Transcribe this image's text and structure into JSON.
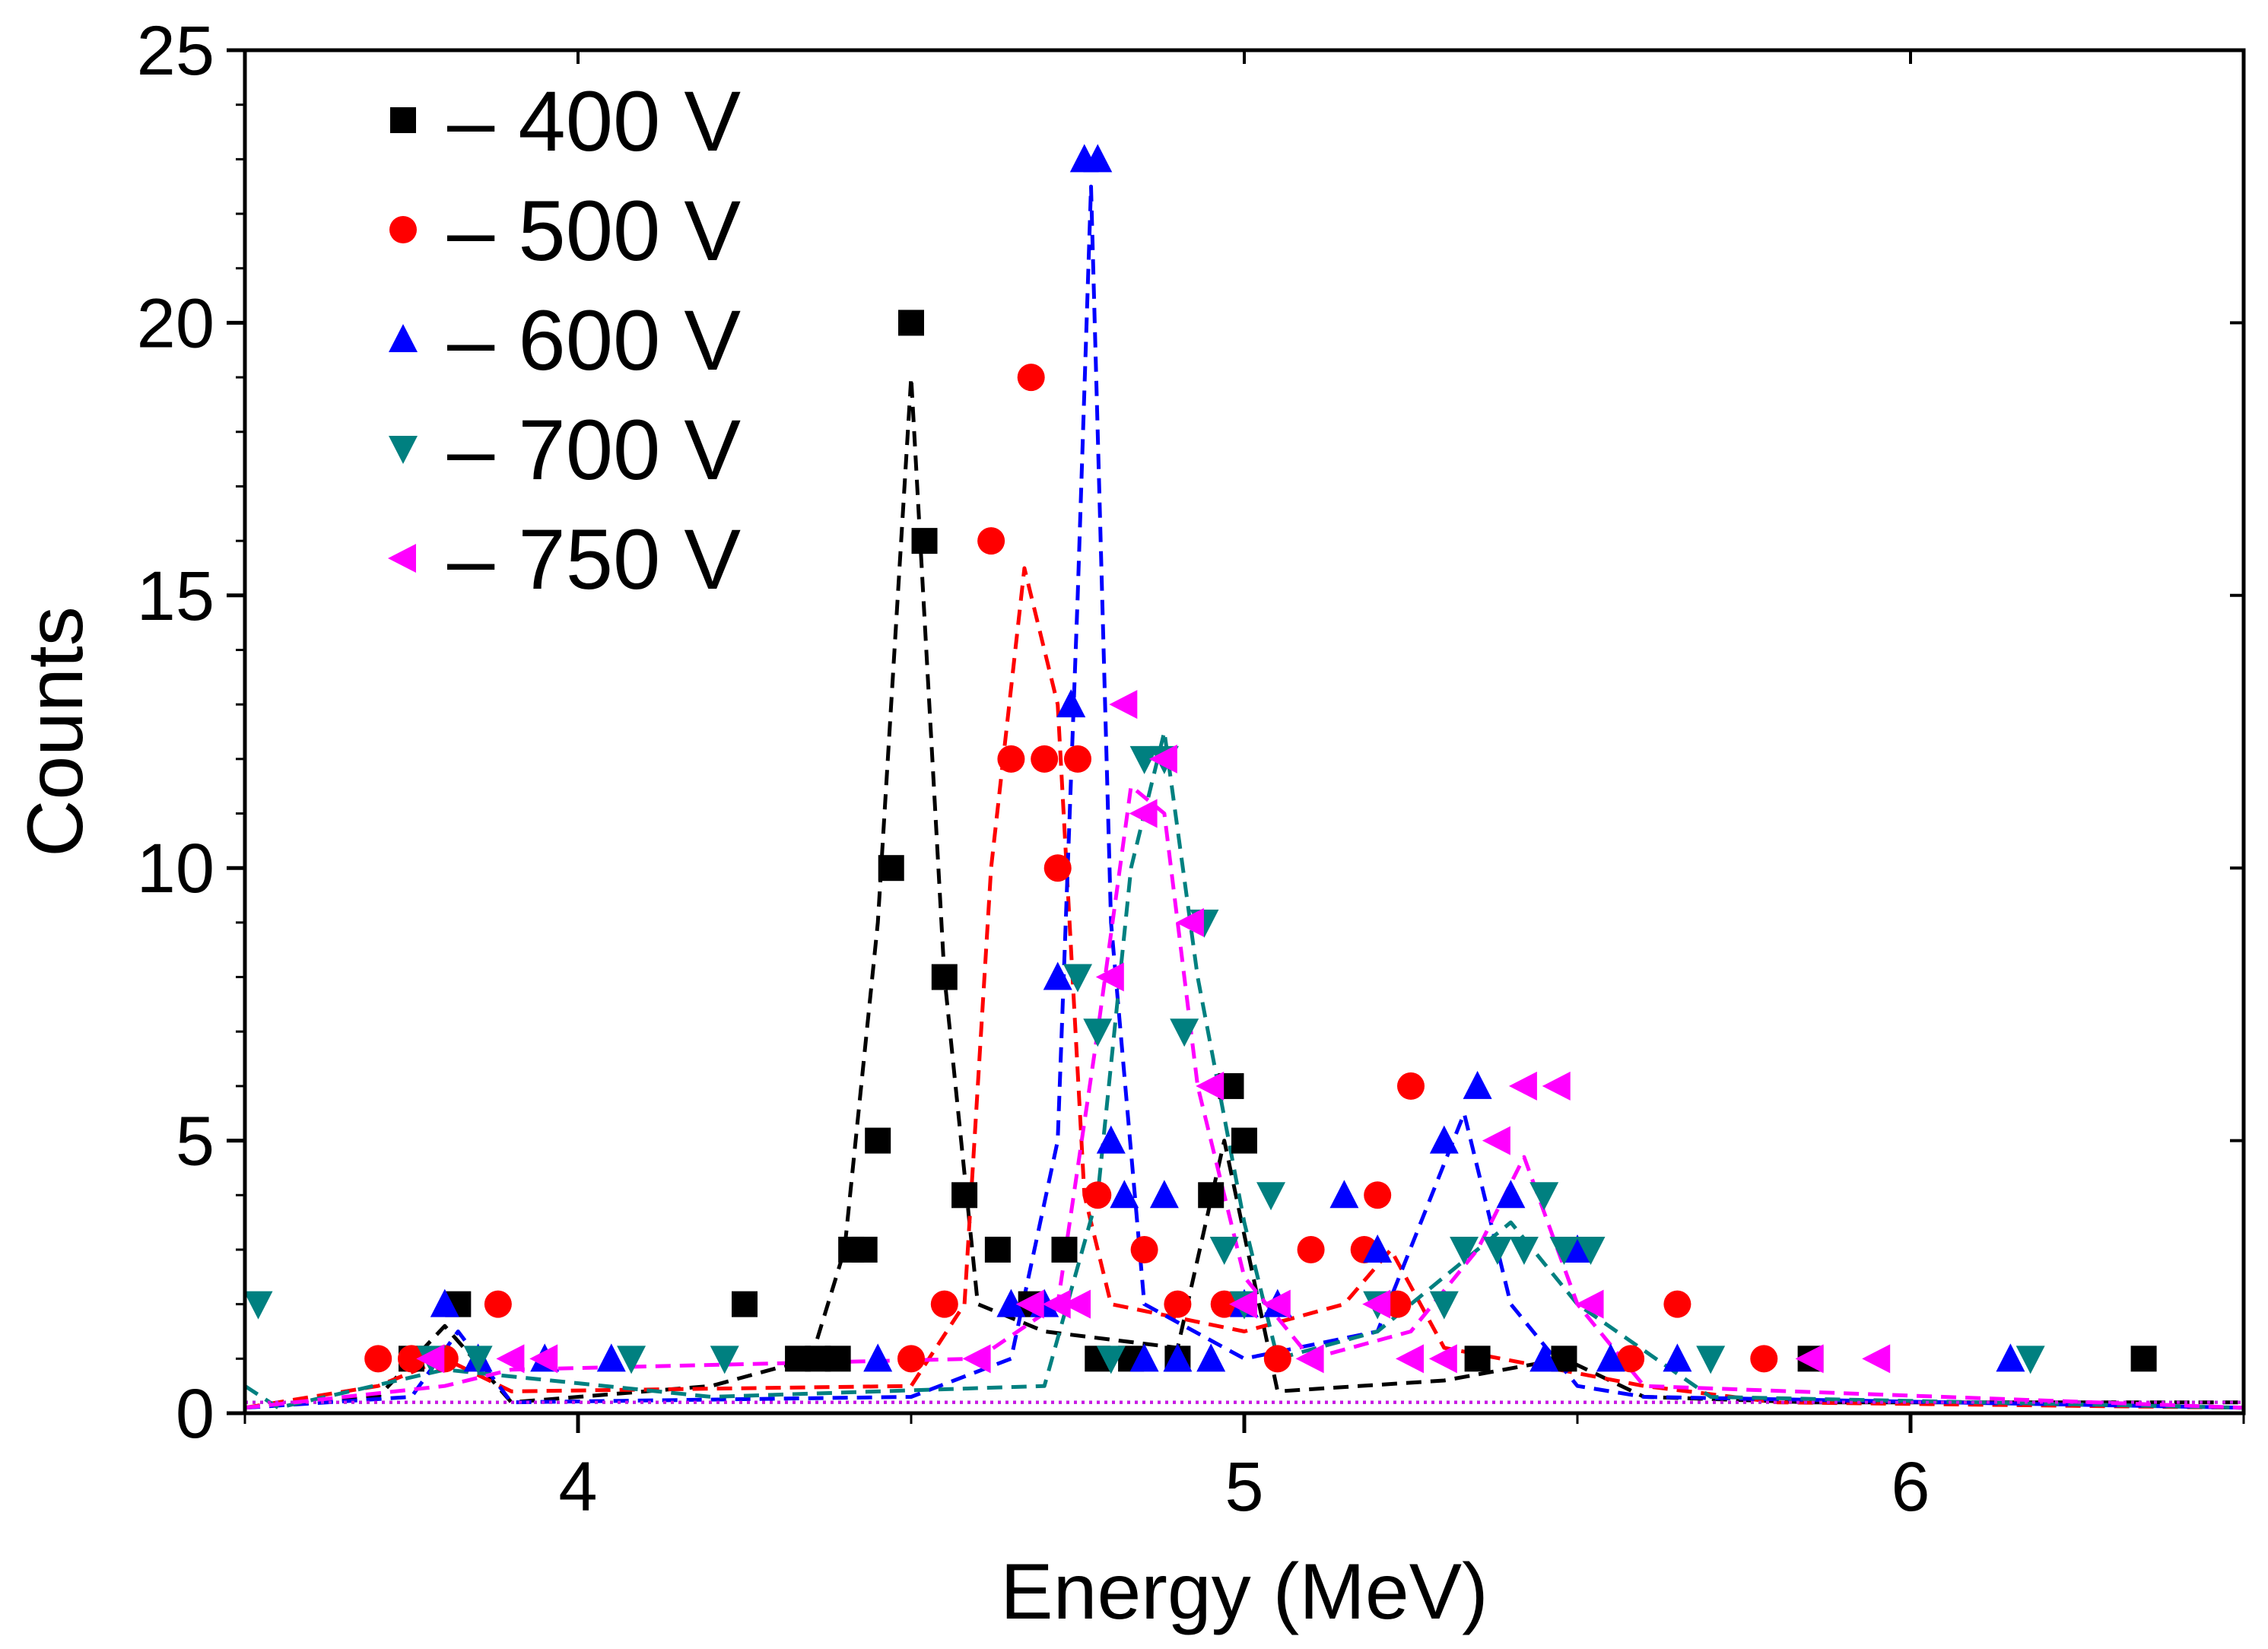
{
  "chart_data": {
    "type": "scatter",
    "title": "",
    "xlabel": "Energy (MeV)",
    "ylabel": "Counts",
    "xlim": [
      3.5,
      6.5
    ],
    "ylim": [
      0,
      25
    ],
    "xticks": [
      4,
      5,
      6
    ],
    "yticks": [
      0,
      5,
      10,
      15,
      20,
      25
    ],
    "grid": false,
    "legend_position": "top-left",
    "series": [
      {
        "name": "400 V",
        "legend_label": "– 400 V",
        "color": "#000000",
        "marker": "square",
        "x": [
          3.75,
          3.82,
          4.25,
          4.33,
          4.36,
          4.39,
          4.41,
          4.43,
          4.45,
          4.47,
          4.5,
          4.52,
          4.55,
          4.58,
          4.63,
          4.68,
          4.73,
          4.78,
          4.83,
          4.9,
          4.95,
          4.98,
          5.0,
          5.35,
          5.48,
          5.85,
          6.35
        ],
        "y": [
          1,
          2,
          2,
          1,
          1,
          1,
          3,
          3,
          5,
          10,
          20,
          16,
          8,
          4,
          3,
          2,
          3,
          1,
          1,
          1,
          4,
          6,
          5,
          1,
          1,
          1,
          1
        ],
        "fit_x": [
          3.5,
          3.7,
          3.8,
          3.9,
          4.2,
          4.35,
          4.4,
          4.45,
          4.5,
          4.55,
          4.6,
          4.7,
          4.9,
          4.97,
          5.05,
          5.3,
          5.48,
          5.6,
          5.85,
          6.5
        ],
        "fit_y": [
          0.1,
          0.3,
          1.6,
          0.2,
          0.5,
          1.0,
          3.0,
          9.0,
          19.0,
          8.0,
          2.0,
          1.5,
          1.2,
          5.0,
          0.4,
          0.6,
          1.0,
          0.3,
          0.2,
          0.2
        ]
      },
      {
        "name": "500 V",
        "legend_label": "– 500 V",
        "color": "#ff0000",
        "marker": "circle",
        "x": [
          3.7,
          3.75,
          3.8,
          3.88,
          4.5,
          4.55,
          4.62,
          4.65,
          4.68,
          4.7,
          4.72,
          4.75,
          4.78,
          4.85,
          4.9,
          4.97,
          5.05,
          5.1,
          5.18,
          5.2,
          5.23,
          5.25,
          5.58,
          5.65,
          5.78
        ],
        "y": [
          1,
          1,
          1,
          2,
          1,
          2,
          16,
          12,
          19,
          12,
          10,
          12,
          4,
          3,
          2,
          2,
          1,
          3,
          3,
          4,
          2,
          6,
          1,
          2,
          1
        ],
        "fit_x": [
          3.5,
          3.7,
          3.8,
          3.9,
          4.5,
          4.58,
          4.62,
          4.67,
          4.72,
          4.76,
          4.8,
          5.0,
          5.15,
          5.22,
          5.3,
          5.6,
          5.8,
          6.5
        ],
        "fit_y": [
          0.1,
          0.5,
          1.0,
          0.4,
          0.5,
          2.0,
          10.0,
          15.5,
          13.0,
          4.0,
          2.0,
          1.5,
          2.0,
          3.0,
          1.2,
          0.5,
          0.2,
          0.1
        ]
      },
      {
        "name": "600 V",
        "legend_label": "– 600 V",
        "color": "#0000ff",
        "marker": "triangle-up",
        "x": [
          3.8,
          3.85,
          3.95,
          4.05,
          4.45,
          4.65,
          4.7,
          4.72,
          4.74,
          4.76,
          4.78,
          4.8,
          4.82,
          4.85,
          4.88,
          4.9,
          4.95,
          5.0,
          5.05,
          5.15,
          5.2,
          5.3,
          5.35,
          5.4,
          5.45,
          5.5,
          5.55,
          5.65,
          6.15
        ],
        "y": [
          2,
          1,
          1,
          1,
          1,
          2,
          2,
          8,
          13,
          23,
          23,
          5,
          4,
          1,
          4,
          1,
          1,
          2,
          2,
          4,
          3,
          5,
          6,
          4,
          1,
          3,
          1,
          1,
          1
        ],
        "fit_x": [
          3.5,
          3.75,
          3.82,
          3.9,
          4.5,
          4.65,
          4.72,
          4.75,
          4.77,
          4.8,
          4.85,
          5.0,
          5.2,
          5.33,
          5.4,
          5.5,
          5.6,
          6.5
        ],
        "fit_y": [
          0.1,
          0.3,
          1.5,
          0.2,
          0.3,
          1.0,
          5.0,
          15.0,
          22.5,
          9.0,
          2.0,
          1.0,
          1.5,
          5.5,
          2.0,
          0.5,
          0.3,
          0.1
        ]
      },
      {
        "name": "700 V",
        "legend_label": "– 700 V",
        "color": "#008080",
        "marker": "triangle-down",
        "x": [
          3.52,
          3.78,
          3.85,
          4.08,
          4.22,
          4.75,
          4.78,
          4.8,
          4.85,
          4.88,
          4.91,
          4.94,
          4.97,
          5.0,
          5.04,
          5.2,
          5.3,
          5.33,
          5.38,
          5.42,
          5.45,
          5.48,
          5.52,
          5.7,
          6.18
        ],
        "y": [
          2,
          1,
          1,
          1,
          1,
          8,
          7,
          1,
          12,
          12,
          7,
          9,
          3,
          2,
          4,
          2,
          2,
          3,
          3,
          3,
          4,
          3,
          3,
          1,
          1
        ],
        "fit_x": [
          3.5,
          3.55,
          3.8,
          4.2,
          4.7,
          4.78,
          4.83,
          4.88,
          4.93,
          5.0,
          5.05,
          5.2,
          5.3,
          5.4,
          5.5,
          5.7,
          6.5
        ],
        "fit_y": [
          0.5,
          0.1,
          0.8,
          0.3,
          0.5,
          4.0,
          10.0,
          12.5,
          8.0,
          3.5,
          1.0,
          1.5,
          2.5,
          3.5,
          2.0,
          0.3,
          0.1
        ]
      },
      {
        "name": "750 V",
        "legend_label": "– 750 V",
        "color": "#ff00ff",
        "marker": "triangle-left",
        "x": [
          3.78,
          3.9,
          3.95,
          4.6,
          4.68,
          4.72,
          4.75,
          4.8,
          4.82,
          4.85,
          4.88,
          4.92,
          4.95,
          5.0,
          5.05,
          5.1,
          5.2,
          5.25,
          5.3,
          5.38,
          5.42,
          5.47,
          5.52,
          5.85,
          5.95
        ],
        "y": [
          1,
          1,
          1,
          1,
          2,
          2,
          2,
          8,
          13,
          11,
          12,
          9,
          6,
          2,
          2,
          1,
          2,
          1,
          1,
          5,
          6,
          6,
          2,
          1,
          1
        ],
        "fit_x": [
          3.5,
          3.8,
          3.9,
          4.6,
          4.72,
          4.78,
          4.83,
          4.88,
          4.93,
          5.0,
          5.1,
          5.25,
          5.35,
          5.42,
          5.5,
          5.6,
          6.5
        ],
        "fit_y": [
          0.1,
          0.5,
          0.8,
          1.0,
          2.0,
          7.0,
          11.5,
          11.0,
          6.0,
          2.5,
          1.0,
          1.5,
          3.0,
          4.7,
          2.0,
          0.5,
          0.1
        ]
      }
    ]
  }
}
